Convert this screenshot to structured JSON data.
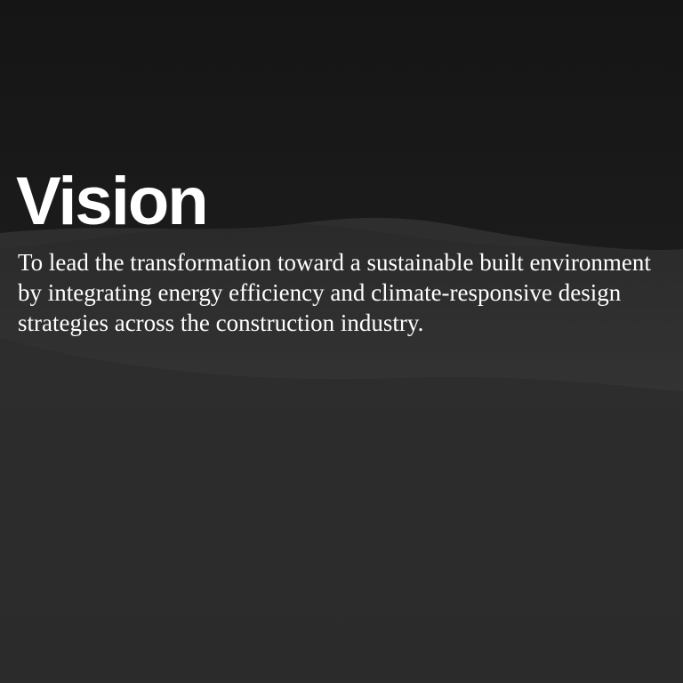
{
  "section": {
    "title": "Vision",
    "body": "To lead the transformation toward a sustainable built environment by integrating energy efficiency and climate-responsive design strategies across the construction industry."
  },
  "colors": {
    "background_top": "#151515",
    "background_bottom": "#2e2e2e",
    "text": "#ffffff"
  }
}
